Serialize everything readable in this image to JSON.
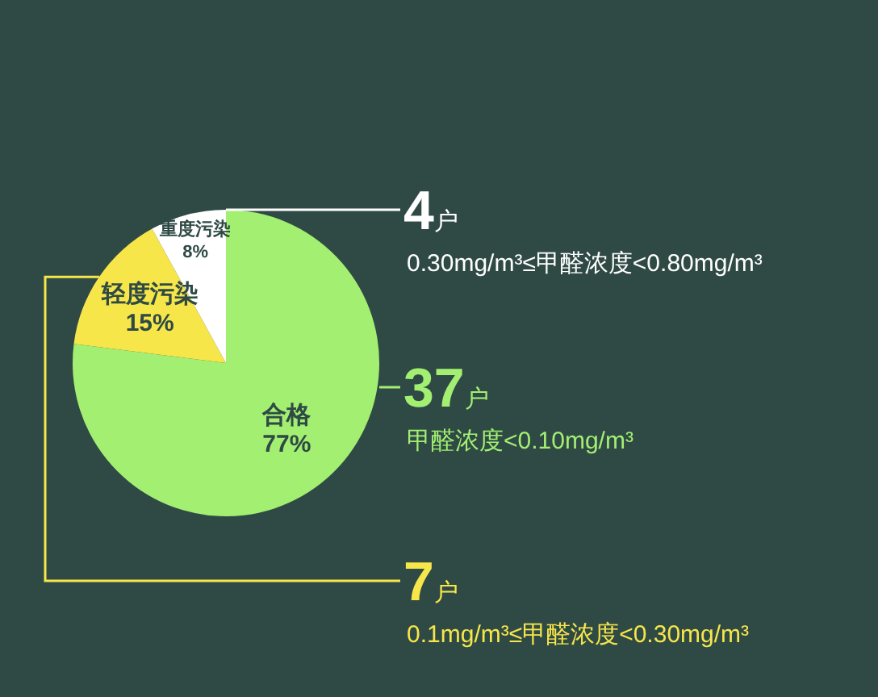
{
  "chart_data": {
    "type": "pie",
    "categories": [
      "合格",
      "轻度污染",
      "重度污染"
    ],
    "values": [
      77,
      15,
      8
    ],
    "value_labels": [
      "77%",
      "15%",
      "8%"
    ],
    "colors": [
      "#a3ef72",
      "#f7e64a",
      "#ffffff"
    ],
    "annotations": [
      "4户",
      "0.30mg/m³≤甲醛浓度<0.80mg/m³",
      "37户",
      "甲醛浓度<0.10mg/m³",
      "7户",
      "0.1mg/m³≤甲醛浓度<0.30mg/m³"
    ],
    "legend": false
  }
}
